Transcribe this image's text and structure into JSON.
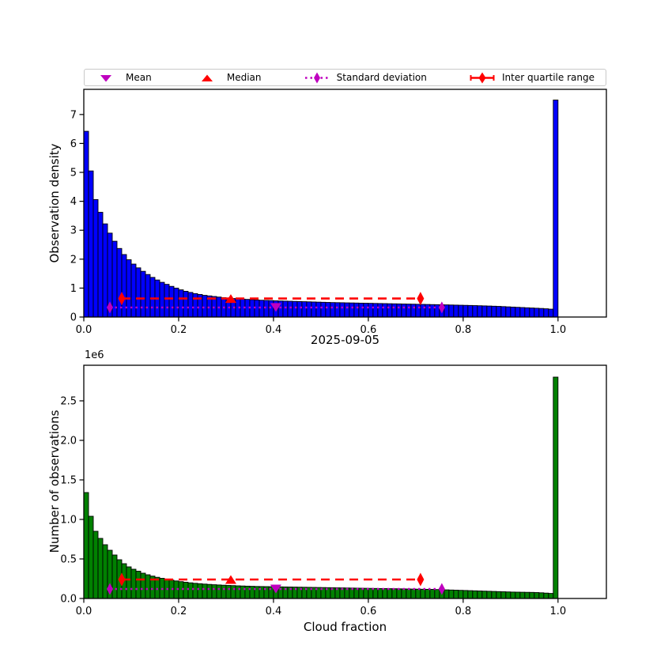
{
  "figure": {
    "background": "#ffffff"
  },
  "legend": {
    "border_color": "#c9c9c9",
    "items": [
      {
        "label": "Mean",
        "marker": "triangle-down-icon",
        "color": "#bf00bf"
      },
      {
        "label": "Median",
        "marker": "triangle-up-icon",
        "color": "#ff0000"
      },
      {
        "label": "Standard deviation",
        "marker": "thin-diamond-dotted-line-icon",
        "color": "#bf00bf"
      },
      {
        "label": "Inter quartile range",
        "marker": "diamond-dashed-line-icon",
        "color": "#ff0000"
      }
    ]
  },
  "chart_data": [
    {
      "type": "bar",
      "panel": "top",
      "ylabel": "Observation density",
      "bar_color": "#0000ff",
      "edge_color": "#000000",
      "grid": false,
      "bins": {
        "start": 0.0,
        "width": 0.01,
        "count": 100
      },
      "xlim": [
        0.0,
        1.102
      ],
      "ylim": [
        0.0,
        7.87
      ],
      "xticks": [
        0.0,
        0.2,
        0.4,
        0.6,
        0.8,
        1.0
      ],
      "xtick_labels": [
        "0.0",
        "0.2",
        "0.4",
        "0.6",
        "0.8",
        "1.0"
      ],
      "yticks": [
        0,
        1,
        2,
        3,
        4,
        5,
        6,
        7
      ],
      "ytick_labels": [
        "0",
        "1",
        "2",
        "3",
        "4",
        "5",
        "6",
        "7"
      ],
      "values": [
        6.42,
        5.05,
        4.06,
        3.62,
        3.22,
        2.9,
        2.62,
        2.37,
        2.16,
        1.98,
        1.83,
        1.7,
        1.58,
        1.47,
        1.37,
        1.28,
        1.2,
        1.13,
        1.06,
        1.0,
        0.94,
        0.89,
        0.85,
        0.81,
        0.78,
        0.75,
        0.73,
        0.71,
        0.69,
        0.67,
        0.65,
        0.64,
        0.63,
        0.62,
        0.61,
        0.6,
        0.59,
        0.58,
        0.575,
        0.57,
        0.56,
        0.555,
        0.55,
        0.545,
        0.54,
        0.535,
        0.53,
        0.525,
        0.52,
        0.515,
        0.51,
        0.505,
        0.5,
        0.497,
        0.494,
        0.49,
        0.487,
        0.484,
        0.48,
        0.477,
        0.474,
        0.47,
        0.467,
        0.464,
        0.46,
        0.457,
        0.454,
        0.45,
        0.447,
        0.444,
        0.44,
        0.437,
        0.434,
        0.43,
        0.427,
        0.424,
        0.42,
        0.416,
        0.412,
        0.408,
        0.404,
        0.4,
        0.395,
        0.39,
        0.385,
        0.38,
        0.374,
        0.368,
        0.36,
        0.352,
        0.344,
        0.336,
        0.328,
        0.32,
        0.312,
        0.304,
        0.296,
        0.285,
        0.272,
        7.5
      ],
      "stats": {
        "mean": 0.405,
        "median": 0.31,
        "std": 0.35,
        "q1": 0.08,
        "q3": 0.71,
        "mean_line_y": 0.33,
        "iqr_line_y": 0.64
      }
    },
    {
      "type": "bar",
      "panel": "bottom",
      "title": "2025-09-05",
      "xlabel": "Cloud fraction",
      "ylabel": "Number of observations",
      "offset_text": "1e6",
      "unit_scale": 1000000,
      "bar_color": "#008000",
      "edge_color": "#000000",
      "grid": false,
      "bins": {
        "start": 0.0,
        "width": 0.01,
        "count": 100
      },
      "xlim": [
        0.0,
        1.102
      ],
      "ylim": [
        0.0,
        2.95
      ],
      "xticks": [
        0.0,
        0.2,
        0.4,
        0.6,
        0.8,
        1.0
      ],
      "xtick_labels": [
        "0.0",
        "0.2",
        "0.4",
        "0.6",
        "0.8",
        "1.0"
      ],
      "yticks": [
        0.0,
        0.5,
        1.0,
        1.5,
        2.0,
        2.5
      ],
      "ytick_labels": [
        "0.0",
        "0.5",
        "1.0",
        "1.5",
        "2.0",
        "2.5"
      ],
      "values": [
        1.34,
        1.04,
        0.85,
        0.76,
        0.68,
        0.61,
        0.55,
        0.49,
        0.44,
        0.4,
        0.37,
        0.345,
        0.32,
        0.3,
        0.283,
        0.268,
        0.255,
        0.243,
        0.232,
        0.222,
        0.213,
        0.205,
        0.198,
        0.192,
        0.187,
        0.182,
        0.178,
        0.174,
        0.171,
        0.168,
        0.165,
        0.163,
        0.16,
        0.158,
        0.156,
        0.154,
        0.152,
        0.151,
        0.15,
        0.149,
        0.148,
        0.147,
        0.146,
        0.145,
        0.144,
        0.143,
        0.142,
        0.141,
        0.14,
        0.139,
        0.138,
        0.137,
        0.136,
        0.135,
        0.134,
        0.133,
        0.132,
        0.131,
        0.13,
        0.129,
        0.128,
        0.127,
        0.126,
        0.125,
        0.124,
        0.123,
        0.122,
        0.121,
        0.12,
        0.119,
        0.118,
        0.117,
        0.116,
        0.115,
        0.113,
        0.111,
        0.109,
        0.107,
        0.105,
        0.103,
        0.101,
        0.099,
        0.097,
        0.095,
        0.093,
        0.091,
        0.089,
        0.087,
        0.085,
        0.083,
        0.081,
        0.08,
        0.079,
        0.078,
        0.077,
        0.075,
        0.072,
        0.068,
        0.064,
        2.8
      ],
      "stats": {
        "mean": 0.405,
        "median": 0.31,
        "std": 0.35,
        "q1": 0.08,
        "q3": 0.71,
        "mean_line_y": 0.12,
        "iqr_line_y": 0.24
      }
    }
  ]
}
